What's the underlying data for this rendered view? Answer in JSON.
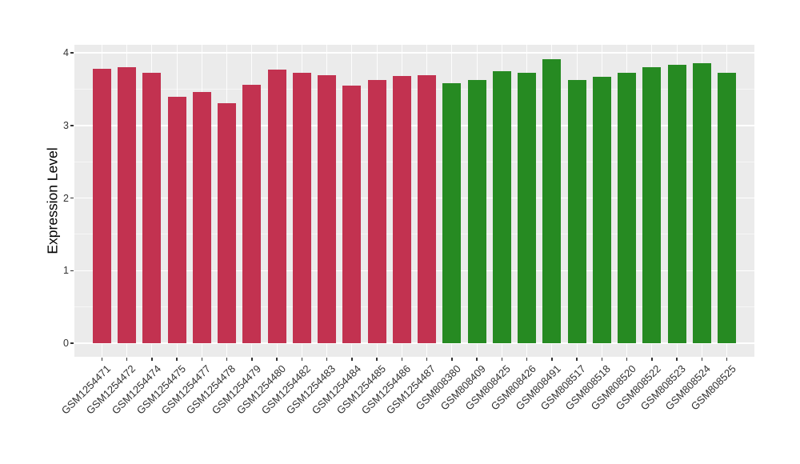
{
  "chart_data": {
    "type": "bar",
    "title": "",
    "xlabel": "",
    "ylabel": "Expression Level",
    "ylim": [
      0,
      4.1
    ],
    "yticks": [
      0,
      1,
      2,
      3,
      4
    ],
    "ytick_labels": [
      "0",
      "1",
      "2",
      "3",
      "4"
    ],
    "grid": true,
    "legend": false,
    "panel_background": "#EBEBEB",
    "gridline_color": "#FFFFFF",
    "axis_text_color": "#333333",
    "categories": [
      "GSM1254471",
      "GSM1254472",
      "GSM1254474",
      "GSM1254475",
      "GSM1254477",
      "GSM1254478",
      "GSM1254479",
      "GSM1254480",
      "GSM1254482",
      "GSM1254483",
      "GSM1254484",
      "GSM1254485",
      "GSM1254486",
      "GSM1254487",
      "GSM808380",
      "GSM808409",
      "GSM808425",
      "GSM808426",
      "GSM808491",
      "GSM808517",
      "GSM808518",
      "GSM808520",
      "GSM808522",
      "GSM808523",
      "GSM808524",
      "GSM808525"
    ],
    "values": [
      3.78,
      3.8,
      3.72,
      3.39,
      3.46,
      3.31,
      3.56,
      3.77,
      3.73,
      3.69,
      3.55,
      3.63,
      3.68,
      3.69,
      3.58,
      3.63,
      3.75,
      3.73,
      3.91,
      3.63,
      3.67,
      3.73,
      3.8,
      3.84,
      3.86,
      3.72
    ],
    "groups": [
      {
        "color": "#C23250",
        "count": 14
      },
      {
        "color": "#268A22",
        "count": 12
      }
    ]
  }
}
